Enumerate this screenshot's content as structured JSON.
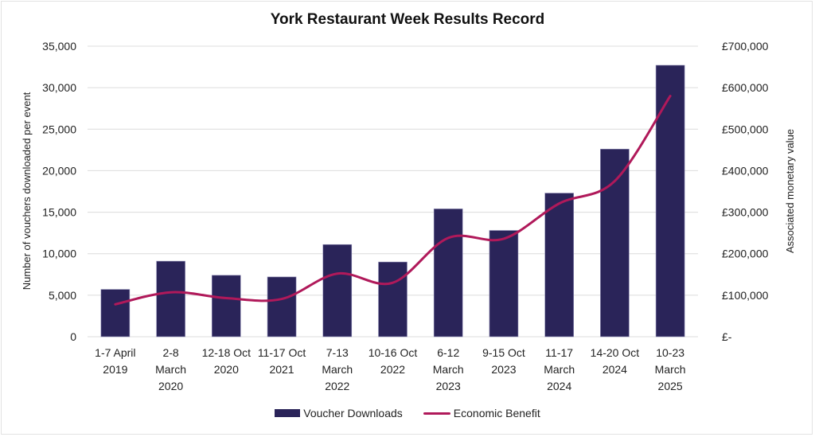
{
  "chart_data": {
    "type": "bar+line",
    "title": "York Restaurant Week Results Record",
    "categories": [
      [
        "1-7 April",
        "2019"
      ],
      [
        "2-8",
        "March",
        "2020"
      ],
      [
        "12-18 Oct",
        "2020"
      ],
      [
        "11-17 Oct",
        "2021"
      ],
      [
        "7-13",
        "March",
        "2022"
      ],
      [
        "10-16 Oct",
        "2022"
      ],
      [
        "6-12",
        "March",
        "2023"
      ],
      [
        "9-15 Oct",
        "2023"
      ],
      [
        "11-17",
        "March",
        "2024"
      ],
      [
        "14-20 Oct",
        "2024"
      ],
      [
        "10-23",
        "March",
        "2025"
      ]
    ],
    "series": [
      {
        "name": "Voucher Downloads",
        "type": "bar",
        "axis": "left",
        "color": "#2a2459",
        "values": [
          5700,
          9100,
          7400,
          7200,
          11100,
          9000,
          15400,
          12800,
          17300,
          22600,
          32700
        ]
      },
      {
        "name": "Economic Benefit",
        "type": "line",
        "axis": "right",
        "color": "#b0195a",
        "values": [
          78000,
          107000,
          93000,
          91000,
          152000,
          130000,
          238000,
          236000,
          321000,
          375000,
          580000
        ]
      }
    ],
    "ylabel": "Number of vouchers downloaded per event",
    "ylabel_right": "Associated monetary value",
    "ylim": [
      0,
      35000
    ],
    "ylim_right": [
      0,
      700000
    ],
    "yticks": [
      "0",
      "5,000",
      "10,000",
      "15,000",
      "20,000",
      "25,000",
      "30,000",
      "35,000"
    ],
    "yticks_right": [
      "£-",
      "£100,000",
      "£200,000",
      "£300,000",
      "£400,000",
      "£500,000",
      "£600,000",
      "£700,000"
    ],
    "grid": true,
    "legend_position": "bottom"
  },
  "legend": {
    "bar_label": "Voucher Downloads",
    "line_label": "Economic Benefit"
  }
}
